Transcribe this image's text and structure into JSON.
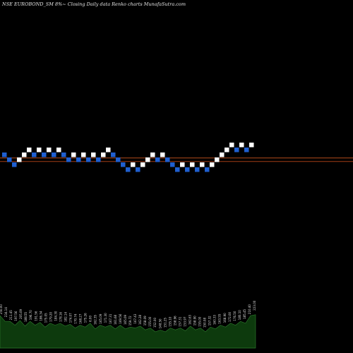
{
  "chart_data": {
    "type": "renko",
    "title": "NSE EUROBOND_SM 8%~  Closing Daily data  Renko  charts MunafaSutra.com",
    "colors": {
      "background": "#000000",
      "up_brick": "#ffffff",
      "down_brick": "#1f5fd0",
      "reference_line_1": "#b34a1a",
      "reference_line_2": "#a03c14",
      "volume_fill": "#0d3a0d",
      "volume_edge": "#2f7f2f"
    },
    "bricks": [
      {
        "dir": "down",
        "level": 0
      },
      {
        "dir": "down",
        "level": -1
      },
      {
        "dir": "down",
        "level": -2
      },
      {
        "dir": "up",
        "level": -1
      },
      {
        "dir": "up",
        "level": 0
      },
      {
        "dir": "up",
        "level": 1
      },
      {
        "dir": "down",
        "level": 0
      },
      {
        "dir": "up",
        "level": 1
      },
      {
        "dir": "down",
        "level": 0
      },
      {
        "dir": "up",
        "level": 1
      },
      {
        "dir": "down",
        "level": 0
      },
      {
        "dir": "up",
        "level": 1
      },
      {
        "dir": "down",
        "level": 0
      },
      {
        "dir": "down",
        "level": -1
      },
      {
        "dir": "up",
        "level": 0
      },
      {
        "dir": "down",
        "level": -1
      },
      {
        "dir": "up",
        "level": 0
      },
      {
        "dir": "down",
        "level": -1
      },
      {
        "dir": "up",
        "level": 0
      },
      {
        "dir": "down",
        "level": -1
      },
      {
        "dir": "up",
        "level": 0
      },
      {
        "dir": "up",
        "level": 1
      },
      {
        "dir": "down",
        "level": 0
      },
      {
        "dir": "down",
        "level": -1
      },
      {
        "dir": "down",
        "level": -2
      },
      {
        "dir": "down",
        "level": -3
      },
      {
        "dir": "up",
        "level": -2
      },
      {
        "dir": "down",
        "level": -3
      },
      {
        "dir": "up",
        "level": -2
      },
      {
        "dir": "up",
        "level": -1
      },
      {
        "dir": "up",
        "level": 0
      },
      {
        "dir": "down",
        "level": -1
      },
      {
        "dir": "up",
        "level": 0
      },
      {
        "dir": "down",
        "level": -1
      },
      {
        "dir": "down",
        "level": -2
      },
      {
        "dir": "down",
        "level": -3
      },
      {
        "dir": "up",
        "level": -2
      },
      {
        "dir": "down",
        "level": -3
      },
      {
        "dir": "up",
        "level": -2
      },
      {
        "dir": "down",
        "level": -3
      },
      {
        "dir": "up",
        "level": -2
      },
      {
        "dir": "down",
        "level": -3
      },
      {
        "dir": "up",
        "level": -2
      },
      {
        "dir": "up",
        "level": -1
      },
      {
        "dir": "up",
        "level": 0
      },
      {
        "dir": "up",
        "level": 1
      },
      {
        "dir": "up",
        "level": 2
      },
      {
        "dir": "down",
        "level": 1
      },
      {
        "dir": "up",
        "level": 2
      },
      {
        "dir": "down",
        "level": 1
      },
      {
        "dir": "up",
        "level": 2
      }
    ],
    "reference_levels": [
      -0.9,
      -1.6
    ],
    "volume_labels": [
      "250.00",
      "234.14",
      "211.45",
      "197.56",
      "205.09",
      "188.55",
      "196.70",
      "191.56",
      "186.34",
      "175.05",
      "179.20",
      "184.30",
      "178.16",
      "182.14",
      "174.07",
      "170.74",
      "168.27",
      "175.26",
      "6.00",
      "162.35",
      "165.09",
      "171.30",
      "167.31",
      "161.68",
      "169.56",
      "165.09",
      "159.72",
      "167.43",
      "162.28",
      "158.09",
      "155.00",
      "152.00",
      "148.50",
      "151.25",
      "155.10",
      "158.96",
      "157.31",
      "153.97",
      "162.63",
      "158.90",
      "155.00",
      "150.08",
      "157.32",
      "160.33",
      "163.55",
      "168.90",
      "172.00",
      "176.50",
      "180.10",
      "185.45",
      "210.40",
      "223.00"
    ],
    "volume_values": [
      34,
      31,
      28,
      27,
      29,
      26,
      28,
      27,
      27,
      25,
      26,
      27,
      26,
      26,
      25,
      24,
      24,
      25,
      26,
      23,
      24,
      25,
      24,
      23,
      24,
      23,
      22,
      24,
      23,
      22,
      21,
      20,
      19,
      20,
      21,
      22,
      21,
      21,
      23,
      22,
      21,
      20,
      22,
      23,
      24,
      25,
      26,
      27,
      28,
      29,
      34,
      38
    ]
  }
}
